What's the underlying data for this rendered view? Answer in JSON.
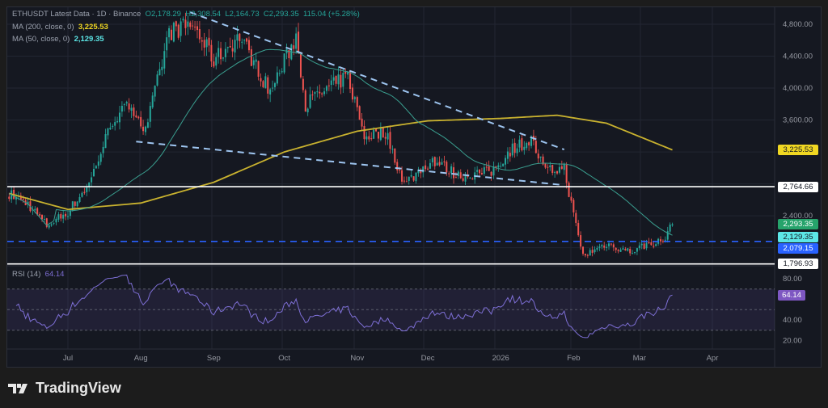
{
  "header": {
    "symbol_line": "ETHUSDT Latest Data · 1D · Binance",
    "open": "O2,178.29",
    "high": "H2,308.54",
    "low": "L2,164.73",
    "close": "C2,293.35",
    "change": "115.04 (+5.28%)",
    "ma200_label": "MA (200, close, 0)",
    "ma200_value": "3,225.53",
    "ma50_label": "MA (50, close, 0)",
    "ma50_value": "2,129.35",
    "rsi_label": "RSI (14)",
    "rsi_value": "64.14"
  },
  "price_axis": {
    "ticks": [
      "4,800.00",
      "4,400.00",
      "4,000.00",
      "3,600.00",
      "2,400.00"
    ]
  },
  "rsi_axis": {
    "ticks": [
      "80.00",
      "40.00",
      "20.00"
    ]
  },
  "time_axis": {
    "ticks": [
      "Jul",
      "Aug",
      "Sep",
      "Oct",
      "Nov",
      "Dec",
      "2026",
      "Feb",
      "Mar",
      "Apr"
    ]
  },
  "price_tags": [
    {
      "label": "3,225.53",
      "value": 3225.53,
      "bg": "#f0d722",
      "fg": "#131722"
    },
    {
      "label": "2,764.66",
      "value": 2764.66,
      "bg": "#ffffff",
      "fg": "#131722"
    },
    {
      "label": "2,293.35",
      "value": 2293.35,
      "bg": "#26a36b",
      "fg": "#ffffff"
    },
    {
      "label": "2,129.35",
      "value": 2129.35,
      "bg": "#5ce6e6",
      "fg": "#131722"
    },
    {
      "label": "2,079.15",
      "value": 2079.15,
      "bg": "#2962ff",
      "fg": "#ffffff"
    },
    {
      "label": "1,796.93",
      "value": 1796.93,
      "bg": "#ffffff",
      "fg": "#131722"
    }
  ],
  "rsi_tag": {
    "label": "64.14",
    "value": 64.14,
    "bg": "#7e57c2"
  },
  "brand": {
    "name": "TradingView"
  },
  "colors": {
    "up": "#26a69a",
    "down": "#ef5350",
    "ma200": "#c9b22f",
    "ma50": "#3a9e8f",
    "rsi": "#7e6fd6",
    "trendline": "#9ec5f0",
    "support_dashed": "#2962ff"
  },
  "chart_data": {
    "type": "candlestick",
    "note_precision": "approximate closes read from chart",
    "close_keypoints": [
      [
        "2025-06-06",
        2680
      ],
      [
        "2025-06-14",
        2550
      ],
      [
        "2025-06-22",
        2280
      ],
      [
        "2025-07-01",
        2450
      ],
      [
        "2025-07-10",
        2800
      ],
      [
        "2025-07-20",
        3600
      ],
      [
        "2025-07-28",
        3800
      ],
      [
        "2025-08-03",
        3450
      ],
      [
        "2025-08-13",
        4700
      ],
      [
        "2025-08-23",
        4800
      ],
      [
        "2025-09-01",
        4350
      ],
      [
        "2025-09-12",
        4650
      ],
      [
        "2025-09-25",
        3950
      ],
      [
        "2025-10-06",
        4650
      ],
      [
        "2025-10-10",
        3800
      ],
      [
        "2025-10-20",
        4000
      ],
      [
        "2025-10-28",
        4150
      ],
      [
        "2025-11-04",
        3400
      ],
      [
        "2025-11-13",
        3450
      ],
      [
        "2025-11-21",
        2800
      ],
      [
        "2025-12-03",
        3100
      ],
      [
        "2025-12-14",
        2900
      ],
      [
        "2025-12-28",
        2950
      ],
      [
        "2026-01-06",
        3250
      ],
      [
        "2026-01-14",
        3350
      ],
      [
        "2026-01-20",
        2950
      ],
      [
        "2026-01-28",
        3000
      ],
      [
        "2026-02-01",
        2400
      ],
      [
        "2026-02-05",
        1900
      ],
      [
        "2026-02-15",
        2050
      ],
      [
        "2026-02-25",
        1950
      ],
      [
        "2026-03-05",
        2050
      ],
      [
        "2026-03-11",
        2080
      ],
      [
        "2026-03-15",
        2293.35
      ]
    ],
    "ma200_keypoints": [
      [
        "2025-06-06",
        2680
      ],
      [
        "2025-07-01",
        2480
      ],
      [
        "2025-08-01",
        2560
      ],
      [
        "2025-09-01",
        2820
      ],
      [
        "2025-10-01",
        3200
      ],
      [
        "2025-11-01",
        3460
      ],
      [
        "2025-12-01",
        3590
      ],
      [
        "2026-01-01",
        3620
      ],
      [
        "2026-01-25",
        3660
      ],
      [
        "2026-02-15",
        3560
      ],
      [
        "2026-03-15",
        3225.53
      ]
    ],
    "trendlines": [
      {
        "from": [
          "2025-08-22",
          4950
        ],
        "to": [
          "2026-01-28",
          3230
        ],
        "style": "dashed"
      },
      {
        "from": [
          "2025-07-30",
          3330
        ],
        "to": [
          "2026-01-26",
          2790
        ],
        "style": "dashed"
      }
    ],
    "horizontal_lines": [
      {
        "value": 2764.66,
        "style": "solid",
        "color": "#ffffff"
      },
      {
        "value": 1796.93,
        "style": "solid",
        "color": "#ffffff"
      },
      {
        "value": 2079.15,
        "style": "dashed",
        "color": "#2962ff"
      }
    ],
    "rsi_levels": [
      70,
      50,
      30
    ],
    "ylim": [
      1700,
      4950
    ],
    "rsi_ylim": [
      10,
      95
    ]
  }
}
